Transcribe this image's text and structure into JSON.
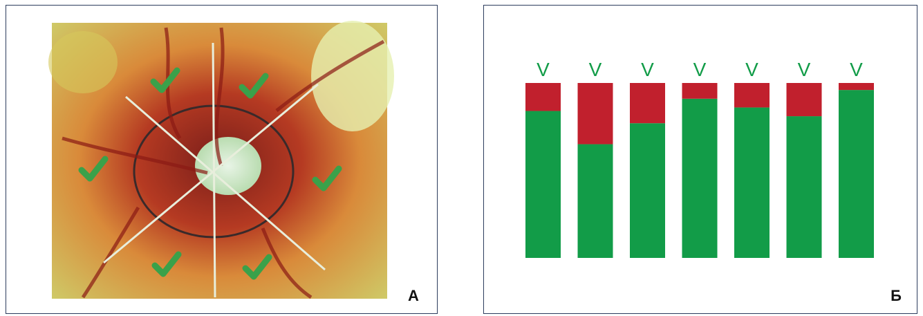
{
  "panel_a": {
    "label": "А"
  },
  "chart_data": {
    "type": "bar",
    "stacked": true,
    "label": "Б",
    "categories": [
      "V",
      "V",
      "V",
      "V",
      "V",
      "V",
      "V"
    ],
    "ylim": [
      0,
      100
    ],
    "series": [
      {
        "color": "#129c48",
        "values": [
          84,
          65,
          77,
          91,
          86,
          81,
          96
        ]
      },
      {
        "color": "#c1202d",
        "values": [
          16,
          35,
          23,
          9,
          14,
          19,
          4
        ]
      }
    ]
  }
}
